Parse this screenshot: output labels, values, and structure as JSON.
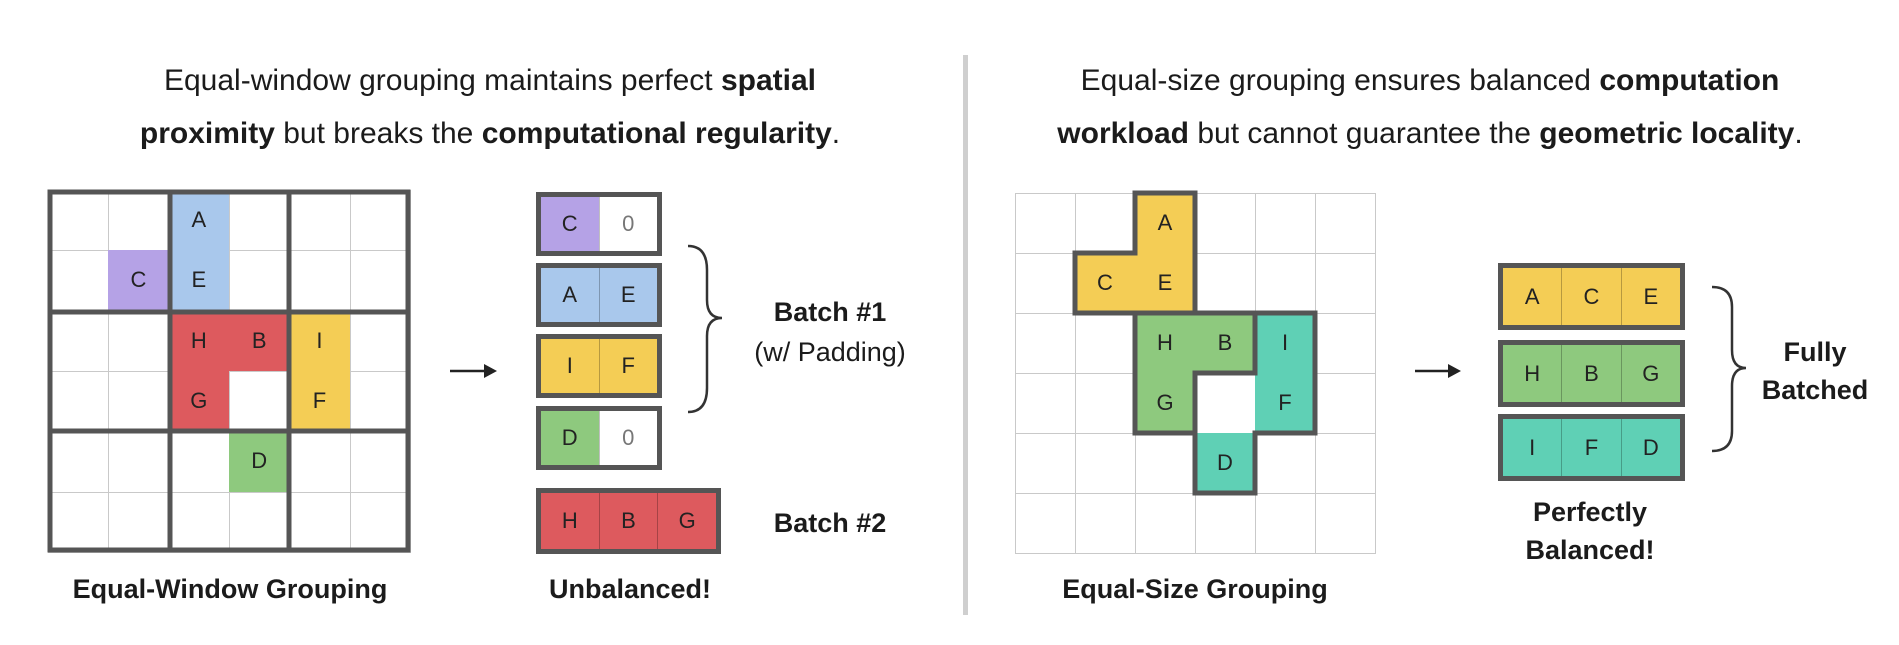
{
  "left": {
    "caption": {
      "line1_a": "Equal-window grouping maintains perfect ",
      "line1_b": "spatial",
      "line2_a": "proximity",
      "line2_b": " but breaks the ",
      "line2_c": "computational regularity",
      "line2_d": "."
    },
    "grid_label": "Equal-Window Grouping",
    "cells": [
      {
        "label": "A",
        "row": 0,
        "col": 2,
        "color": "#a9c8ec"
      },
      {
        "label": "C",
        "row": 1,
        "col": 1,
        "color": "#b5a2e6"
      },
      {
        "label": "E",
        "row": 1,
        "col": 2,
        "color": "#a9c8ec"
      },
      {
        "label": "H",
        "row": 2,
        "col": 2,
        "color": "#dd5a5e"
      },
      {
        "label": "B",
        "row": 2,
        "col": 3,
        "color": "#dd5a5e"
      },
      {
        "label": "I",
        "row": 2,
        "col": 4,
        "color": "#f4cd55"
      },
      {
        "label": "G",
        "row": 3,
        "col": 2,
        "color": "#dd5a5e"
      },
      {
        "label": "F",
        "row": 3,
        "col": 4,
        "color": "#f4cd55"
      },
      {
        "label": "D",
        "row": 4,
        "col": 3,
        "color": "#8ec97e"
      }
    ],
    "batches": [
      {
        "slots": [
          {
            "text": "C",
            "color": "#b5a2e6"
          },
          {
            "text": "0",
            "color": "#ffffff",
            "zero": true
          }
        ]
      },
      {
        "slots": [
          {
            "text": "A",
            "color": "#a9c8ec"
          },
          {
            "text": "E",
            "color": "#a9c8ec"
          }
        ]
      },
      {
        "slots": [
          {
            "text": "I",
            "color": "#f4cd55"
          },
          {
            "text": "F",
            "color": "#f4cd55"
          }
        ]
      },
      {
        "slots": [
          {
            "text": "D",
            "color": "#8ec97e"
          },
          {
            "text": "0",
            "color": "#ffffff",
            "zero": true
          }
        ]
      },
      {
        "slots": [
          {
            "text": "H",
            "color": "#dd5a5e"
          },
          {
            "text": "B",
            "color": "#dd5a5e"
          },
          {
            "text": "G",
            "color": "#dd5a5e"
          }
        ]
      }
    ],
    "batch1_label": "Batch #1",
    "batch1_sub": "(w/ Padding)",
    "batch2_label": "Batch #2",
    "result_label": "Unbalanced!"
  },
  "right": {
    "caption": {
      "line1_a": "Equal-size grouping ensures balanced ",
      "line1_b": "computation",
      "line2_a": "workload",
      "line2_b": " but cannot guarantee the ",
      "line2_c": "geometric locality",
      "line2_d": "."
    },
    "grid_label": "Equal-Size Grouping",
    "cells": [
      {
        "label": "A",
        "row": 0,
        "col": 2,
        "color": "#f4cd55"
      },
      {
        "label": "C",
        "row": 1,
        "col": 1,
        "color": "#f4cd55"
      },
      {
        "label": "E",
        "row": 1,
        "col": 2,
        "color": "#f4cd55"
      },
      {
        "label": "H",
        "row": 2,
        "col": 2,
        "color": "#8ec97e"
      },
      {
        "label": "B",
        "row": 2,
        "col": 3,
        "color": "#8ec97e"
      },
      {
        "label": "I",
        "row": 2,
        "col": 4,
        "color": "#5fd0b5"
      },
      {
        "label": "G",
        "row": 3,
        "col": 2,
        "color": "#8ec97e"
      },
      {
        "label": "F",
        "row": 3,
        "col": 4,
        "color": "#5fd0b5"
      },
      {
        "label": "D",
        "row": 4,
        "col": 3,
        "color": "#5fd0b5"
      }
    ],
    "batches": [
      {
        "slots": [
          {
            "text": "A",
            "color": "#f4cd55"
          },
          {
            "text": "C",
            "color": "#f4cd55"
          },
          {
            "text": "E",
            "color": "#f4cd55"
          }
        ]
      },
      {
        "slots": [
          {
            "text": "H",
            "color": "#8ec97e"
          },
          {
            "text": "B",
            "color": "#8ec97e"
          },
          {
            "text": "G",
            "color": "#8ec97e"
          }
        ]
      },
      {
        "slots": [
          {
            "text": "I",
            "color": "#5fd0b5"
          },
          {
            "text": "F",
            "color": "#5fd0b5"
          },
          {
            "text": "D",
            "color": "#5fd0b5"
          }
        ]
      }
    ],
    "batch_label_1": "Fully",
    "batch_label_2": "Batched",
    "result_label_1": "Perfectly",
    "result_label_2": "Balanced!"
  },
  "colors": {
    "outline": "#555555",
    "grid_line": "#c9c9c9",
    "divider": "#cfcfcf"
  }
}
